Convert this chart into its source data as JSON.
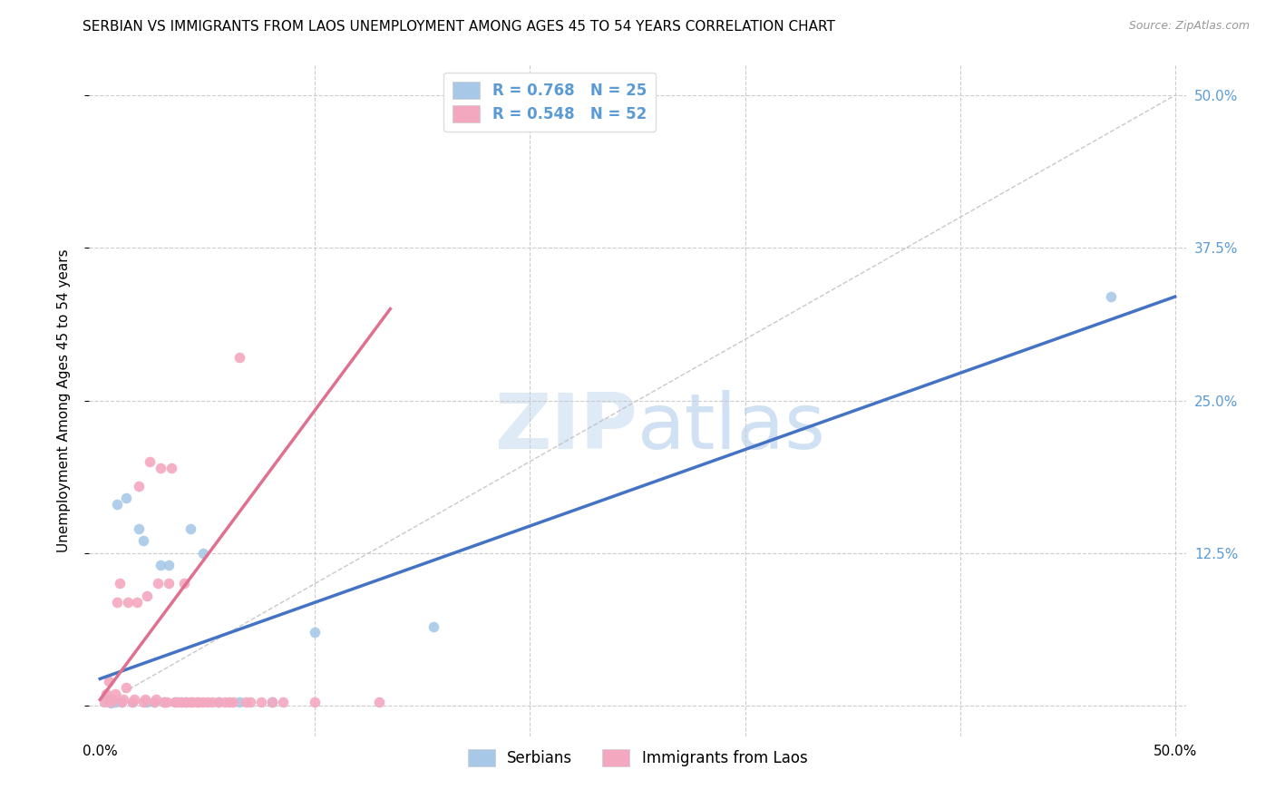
{
  "title": "SERBIAN VS IMMIGRANTS FROM LAOS UNEMPLOYMENT AMONG AGES 45 TO 54 YEARS CORRELATION CHART",
  "source": "Source: ZipAtlas.com",
  "ylabel": "Unemployment Among Ages 45 to 54 years",
  "xlim": [
    -0.005,
    0.505
  ],
  "ylim": [
    -0.025,
    0.525
  ],
  "xticks": [
    0.0,
    0.1,
    0.2,
    0.3,
    0.4,
    0.5
  ],
  "xticklabels": [
    "0.0%",
    "",
    "",
    "",
    "",
    "50.0%"
  ],
  "yticks": [
    0.0,
    0.125,
    0.25,
    0.375,
    0.5
  ],
  "yticklabels": [
    "",
    "12.5%",
    "25.0%",
    "37.5%",
    "50.0%"
  ],
  "serbian_color": "#A8C8E8",
  "laos_color": "#F4A8C0",
  "serbian_line_color": "#4472C4",
  "laos_line_color": "#E07090",
  "serbian_R": 0.768,
  "serbian_N": 25,
  "laos_R": 0.548,
  "laos_N": 52,
  "serbian_scatter_x": [
    0.003,
    0.005,
    0.007,
    0.008,
    0.01,
    0.012,
    0.015,
    0.018,
    0.02,
    0.022,
    0.025,
    0.028,
    0.03,
    0.032,
    0.035,
    0.038,
    0.04,
    0.042,
    0.048,
    0.055,
    0.065,
    0.08,
    0.1,
    0.155,
    0.47
  ],
  "serbian_scatter_y": [
    0.005,
    0.002,
    0.003,
    0.165,
    0.003,
    0.17,
    0.003,
    0.145,
    0.135,
    0.003,
    0.003,
    0.115,
    0.003,
    0.115,
    0.003,
    0.003,
    0.003,
    0.145,
    0.125,
    0.003,
    0.003,
    0.003,
    0.06,
    0.065,
    0.335
  ],
  "laos_scatter_x": [
    0.002,
    0.003,
    0.004,
    0.005,
    0.006,
    0.007,
    0.008,
    0.009,
    0.01,
    0.011,
    0.012,
    0.013,
    0.015,
    0.016,
    0.017,
    0.018,
    0.02,
    0.021,
    0.022,
    0.023,
    0.025,
    0.026,
    0.027,
    0.028,
    0.03,
    0.031,
    0.032,
    0.033,
    0.035,
    0.036,
    0.038,
    0.039,
    0.04,
    0.042,
    0.043,
    0.045,
    0.046,
    0.048,
    0.05,
    0.052,
    0.055,
    0.058,
    0.06,
    0.062,
    0.065,
    0.068,
    0.07,
    0.075,
    0.08,
    0.085,
    0.1,
    0.13
  ],
  "laos_scatter_y": [
    0.003,
    0.01,
    0.02,
    0.003,
    0.005,
    0.01,
    0.085,
    0.1,
    0.003,
    0.005,
    0.015,
    0.085,
    0.003,
    0.005,
    0.085,
    0.18,
    0.003,
    0.005,
    0.09,
    0.2,
    0.003,
    0.005,
    0.1,
    0.195,
    0.003,
    0.003,
    0.1,
    0.195,
    0.003,
    0.003,
    0.003,
    0.1,
    0.003,
    0.003,
    0.003,
    0.003,
    0.003,
    0.003,
    0.003,
    0.003,
    0.003,
    0.003,
    0.003,
    0.003,
    0.285,
    0.003,
    0.003,
    0.003,
    0.003,
    0.003,
    0.003,
    0.003
  ],
  "serbian_line_x": [
    0.0,
    0.5
  ],
  "serbian_line_y": [
    0.022,
    0.335
  ],
  "laos_line_x": [
    0.0,
    0.135
  ],
  "laos_line_y": [
    0.005,
    0.325
  ],
  "diag_line_x": [
    0.0,
    0.5
  ],
  "diag_line_y": [
    0.0,
    0.5
  ],
  "watermark_zip": "ZIP",
  "watermark_atlas": "atlas",
  "background_color": "#ffffff",
  "grid_color": "#cccccc",
  "title_fontsize": 11,
  "axis_label_fontsize": 11,
  "tick_fontsize": 11,
  "legend_fontsize": 12,
  "right_tick_color": "#5B9BD5"
}
